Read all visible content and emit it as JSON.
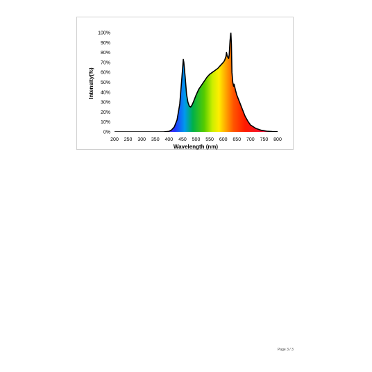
{
  "footer": {
    "page_label": "Page 3 / 3"
  },
  "chart_data": {
    "type": "line",
    "title": "",
    "xlabel": "Wavelength (nm)",
    "ylabel": "Intensity(%)",
    "xlim": [
      200,
      800
    ],
    "ylim": [
      0,
      100
    ],
    "x_ticks": [
      200,
      250,
      300,
      350,
      400,
      450,
      500,
      550,
      600,
      650,
      700,
      750,
      800
    ],
    "y_ticks": [
      0,
      10,
      20,
      30,
      40,
      50,
      60,
      70,
      80,
      90,
      100
    ],
    "y_tick_labels": [
      "0%",
      "10%",
      "20%",
      "30%",
      "40%",
      "50%",
      "60%",
      "70%",
      "80%",
      "90%",
      "100%"
    ],
    "grid": false,
    "legend": "none",
    "background": "visible-spectrum gradient, gray in UV region",
    "series": [
      {
        "color": "#000000",
        "x": [
          200,
          380,
          400,
          410,
          420,
          430,
          440,
          445,
          450,
          453,
          455,
          460,
          465,
          470,
          475,
          480,
          485,
          490,
          500,
          510,
          520,
          530,
          540,
          550,
          560,
          570,
          580,
          590,
          600,
          605,
          610,
          612,
          615,
          620,
          622,
          625,
          628,
          630,
          632,
          635,
          638,
          640,
          645,
          650,
          660,
          670,
          680,
          690,
          700,
          720,
          740,
          760,
          780,
          800
        ],
        "y": [
          0,
          0,
          0.5,
          2,
          5,
          12,
          28,
          45,
          62,
          73,
          70,
          55,
          38,
          30,
          26,
          25,
          27,
          30,
          37,
          43,
          47,
          51,
          55,
          58,
          60,
          62,
          64,
          67,
          70,
          72,
          76,
          80,
          76,
          74,
          78,
          92,
          100,
          88,
          60,
          50,
          46,
          48,
          42,
          37,
          30,
          23,
          16,
          11,
          7,
          3.5,
          1.6,
          0.7,
          0.3,
          0.1
        ]
      }
    ]
  }
}
